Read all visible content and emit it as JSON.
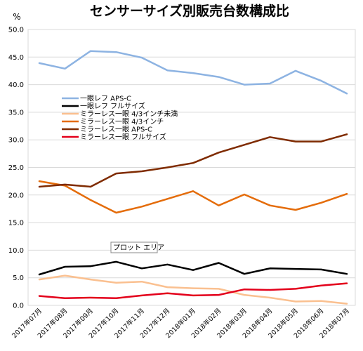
{
  "chart_data": {
    "type": "line",
    "title": "センサーサイズ別販売台数構成比",
    "ylabel": "%",
    "xlabel": "",
    "ylim": [
      0,
      50
    ],
    "yticks": [
      "0.0",
      "5.0",
      "10.0",
      "15.0",
      "20.0",
      "25.0",
      "30.0",
      "35.0",
      "40.0",
      "45.0",
      "50.0"
    ],
    "grid": true,
    "legend_position": "left-middle",
    "tooltip": "プロット エリア",
    "categories": [
      "2017年07月",
      "2017年08月",
      "2017年09月",
      "2017年10月",
      "2017年11月",
      "2017年12月",
      "2018年01月",
      "2018年02月",
      "2018年03月",
      "2018年04月",
      "2018年05月",
      "2018年06月",
      "2018年07月"
    ],
    "series": [
      {
        "name": "一眼レフ APS-C",
        "color": "#8db3e2",
        "values": [
          43.9,
          42.9,
          46.1,
          45.9,
          44.9,
          42.6,
          42.1,
          41.4,
          40.0,
          40.2,
          42.5,
          40.7,
          38.4
        ]
      },
      {
        "name": "一眼レフ フルサイズ",
        "color": "#000000",
        "values": [
          5.6,
          7.0,
          7.1,
          7.9,
          6.7,
          7.4,
          6.4,
          7.7,
          5.7,
          6.7,
          6.6,
          6.5,
          5.7
        ]
      },
      {
        "name": "ミラーレス一眼 4/3インチ未満",
        "color": "#fac090",
        "values": [
          4.7,
          5.4,
          4.7,
          4.1,
          4.3,
          3.3,
          3.1,
          3.0,
          1.9,
          1.4,
          0.7,
          0.8,
          0.3
        ]
      },
      {
        "name": "ミラーレス一眼 4/3インチ",
        "color": "#e46c0a",
        "values": [
          22.5,
          21.7,
          19.1,
          16.8,
          17.9,
          19.3,
          20.7,
          18.1,
          20.1,
          18.1,
          17.3,
          18.6,
          20.2
        ]
      },
      {
        "name": "ミラーレス一眼 APS-C",
        "color": "#7f2b00",
        "values": [
          21.5,
          21.9,
          21.5,
          23.9,
          24.3,
          25.0,
          25.8,
          27.7,
          29.1,
          30.5,
          29.7,
          29.7,
          31.0
        ]
      },
      {
        "name": "ミラーレス一眼 フルサイズ",
        "color": "#e3001b",
        "values": [
          1.7,
          1.3,
          1.4,
          1.3,
          1.8,
          2.2,
          1.8,
          1.9,
          2.9,
          2.8,
          3.0,
          3.6,
          4.0
        ]
      }
    ]
  }
}
